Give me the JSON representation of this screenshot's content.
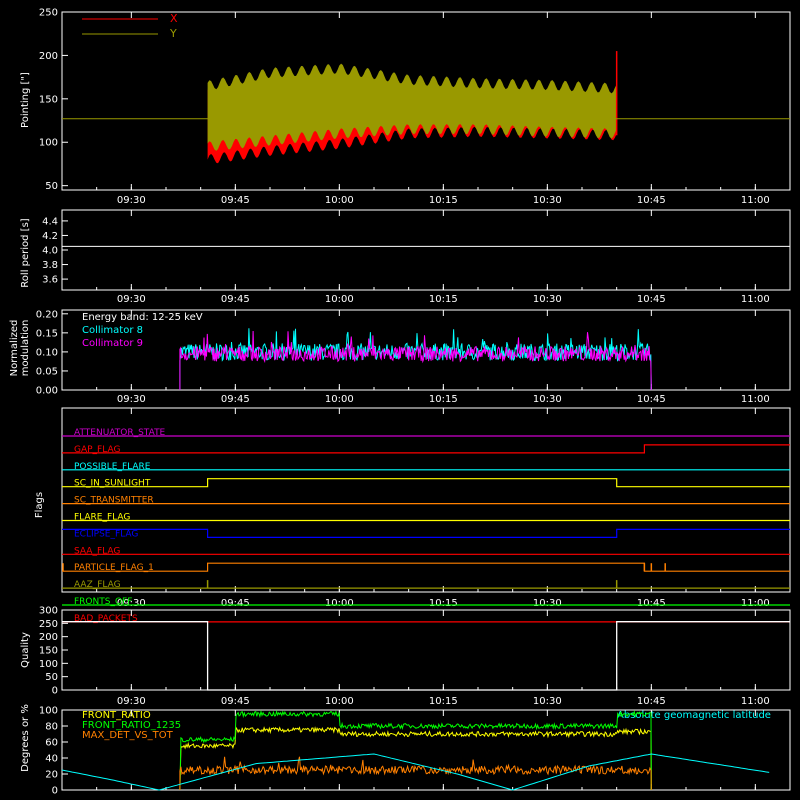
{
  "colors": {
    "background": "#000000",
    "axes": "#ffffff",
    "x_series": "#ff0000",
    "y_series": "#999900",
    "cyan": "#00ffff",
    "magenta": "#ff00ff",
    "white": "#ffffff",
    "green": "#00ff00",
    "yellow": "#ffff00",
    "orange": "#ff8000",
    "blue": "#0000ff",
    "purple": "#cc00cc",
    "red": "#ff0000"
  },
  "time_axis": {
    "range": [
      "09:20",
      "11:05"
    ],
    "ticks": [
      "09:30",
      "09:45",
      "10:00",
      "10:15",
      "10:30",
      "10:45",
      "11:00"
    ]
  },
  "chart_data": [
    {
      "id": "pointing",
      "type": "line",
      "ylabel": "Pointing [\"]",
      "ylim": [
        45,
        250
      ],
      "yticks": [
        50,
        100,
        150,
        200,
        250
      ],
      "legend": [
        "X",
        "Y"
      ],
      "legend_placement": "top-left",
      "series": [
        {
          "name": "X",
          "color_key": "x_series",
          "x": [
            "09:41",
            "09:50",
            "10:00",
            "10:10",
            "10:20",
            "10:30",
            "10:40"
          ],
          "upper": [
            160,
            168,
            172,
            165,
            162,
            160,
            158
          ],
          "lower": [
            80,
            90,
            98,
            110,
            112,
            110,
            108
          ],
          "end_spike": 205
        },
        {
          "name": "Y",
          "color_key": "y_series",
          "x": [
            "09:41",
            "09:50",
            "10:00",
            "10:10",
            "10:20",
            "10:30",
            "10:40"
          ],
          "upper": [
            165,
            180,
            185,
            172,
            168,
            166,
            162
          ],
          "lower": [
            95,
            102,
            110,
            115,
            115,
            112,
            110
          ]
        }
      ],
      "reference_line": 127
    },
    {
      "id": "roll",
      "type": "line",
      "ylabel": "Roll period [s]",
      "ylim": [
        3.45,
        4.55
      ],
      "yticks": [
        "3.6",
        "3.8",
        "4.0",
        "4.2",
        "4.4"
      ],
      "series": [
        {
          "name": "",
          "x": [
            "09:20",
            "11:05"
          ],
          "y": [
            4.05,
            4.05
          ]
        }
      ]
    },
    {
      "id": "modulation",
      "type": "line",
      "ylabel_lines": [
        "Normalized",
        "modulation"
      ],
      "ylim": [
        0,
        0.21
      ],
      "yticks": [
        "0.00",
        "0.05",
        "0.10",
        "0.15",
        "0.20"
      ],
      "annotation": "Energy band: 12-25 keV",
      "series": [
        {
          "name": "Collimator 8",
          "color_key": "cyan",
          "x_range": [
            "09:37",
            "10:45"
          ],
          "mean": 0.1,
          "spread": 0.045
        },
        {
          "name": "Collimator 9",
          "color_key": "magenta",
          "x_range": [
            "09:37",
            "10:45"
          ],
          "mean": 0.095,
          "spread": 0.04
        }
      ]
    },
    {
      "id": "flags",
      "type": "line",
      "ylabel": "Flags",
      "rows": [
        {
          "name": "ATTENUATOR_STATE",
          "color_key": "purple",
          "steps": [
            [
              "09:20",
              0
            ]
          ]
        },
        {
          "name": "GAP_FLAG",
          "color_key": "red",
          "steps": [
            [
              "09:20",
              0
            ],
            [
              "10:44",
              1
            ]
          ]
        },
        {
          "name": "POSSIBLE_FLARE",
          "color_key": "cyan",
          "steps": [
            [
              "09:20",
              0
            ]
          ]
        },
        {
          "name": "SC_IN_SUNLIGHT",
          "color_key": "yellow",
          "steps": [
            [
              "09:20",
              0
            ],
            [
              "09:41",
              1
            ],
            [
              "10:40",
              0
            ]
          ]
        },
        {
          "name": "SC_TRANSMITTER",
          "color_key": "orange",
          "steps": [
            [
              "09:20",
              0
            ]
          ]
        },
        {
          "name": "FLARE_FLAG",
          "color_key": "yellow",
          "steps": [
            [
              "09:20",
              0
            ]
          ]
        },
        {
          "name": "ECLIPSE_FLAG",
          "color_key": "blue",
          "steps": [
            [
              "09:20",
              1
            ],
            [
              "09:41",
              0
            ],
            [
              "10:40",
              1
            ]
          ]
        },
        {
          "name": "SAA_FLAG",
          "color_key": "red",
          "steps": [
            [
              "09:20",
              0
            ]
          ]
        },
        {
          "name": "PARTICLE_FLAG_1",
          "color_key": "orange",
          "steps": [
            [
              "09:20",
              0
            ],
            [
              "09:41",
              1
            ],
            [
              "10:44",
              0
            ]
          ],
          "spikes": [
            "09:20",
            "10:44",
            "10:45",
            "10:47"
          ]
        },
        {
          "name": "AAZ_FLAG",
          "color_key": "y_series",
          "steps": [
            [
              "09:20",
              0
            ]
          ],
          "spikes": [
            "09:41",
            "10:40"
          ]
        },
        {
          "name": "FRONTS_OFF",
          "color_key": "green",
          "steps": [
            [
              "09:20",
              0
            ]
          ]
        },
        {
          "name": "BAD_PACKETS",
          "color_key": "red",
          "steps": [
            [
              "09:20",
              0
            ]
          ]
        }
      ]
    },
    {
      "id": "quality",
      "type": "line",
      "ylabel": "Quality",
      "ylim": [
        0,
        300
      ],
      "yticks": [
        0,
        50,
        100,
        150,
        200,
        250,
        300
      ],
      "series": [
        {
          "name": "",
          "x": [
            "09:20",
            "09:41",
            "09:41",
            "10:40",
            "10:40",
            "11:05"
          ],
          "y": [
            256,
            256,
            0,
            0,
            256,
            256
          ]
        }
      ]
    },
    {
      "id": "geomag",
      "type": "line",
      "ylabel": "Degrees or %",
      "ylim": [
        0,
        100
      ],
      "yticks": [
        0,
        20,
        40,
        60,
        80,
        100
      ],
      "annotation": "Absolute geomagnetic latitude",
      "series": [
        {
          "name": "FRONT_RATIO",
          "color_key": "yellow",
          "x": [
            "09:37",
            "09:37",
            "09:45",
            "09:45",
            "10:00",
            "10:00",
            "10:40",
            "10:40",
            "10:45"
          ],
          "y": [
            0,
            55,
            55,
            75,
            75,
            70,
            70,
            73,
            73
          ]
        },
        {
          "name": "FRONT_RATIO_1235",
          "color_key": "green",
          "x": [
            "09:37",
            "09:37",
            "09:45",
            "09:45",
            "10:00",
            "10:00",
            "10:40",
            "10:40",
            "10:45"
          ],
          "y": [
            0,
            63,
            63,
            95,
            95,
            80,
            80,
            95,
            95
          ]
        },
        {
          "name": "MAX_DET_VS_TOT",
          "color_key": "orange",
          "x_range": [
            "09:37",
            "10:45"
          ],
          "mean": 25,
          "spread": 10
        },
        {
          "name": "Absolute geomagnetic latitude",
          "color_key": "cyan",
          "x": [
            "09:20",
            "09:27",
            "09:34",
            "09:48",
            "10:05",
            "10:17",
            "10:25",
            "10:36",
            "10:45",
            "11:02"
          ],
          "y": [
            25,
            13,
            0,
            33,
            45,
            20,
            0,
            30,
            45,
            22
          ]
        }
      ]
    }
  ],
  "labels": {
    "pointing": {
      "ylabel": "Pointing [\"]",
      "legend_x": "X",
      "legend_y": "Y"
    },
    "roll": {
      "ylabel": "Roll period [s]"
    },
    "modulation": {
      "ylabel_1": "Normalized",
      "ylabel_2": "modulation",
      "annotation": "Energy band: 12-25 keV",
      "legend_1": "Collimator 8",
      "legend_2": "Collimator 9"
    },
    "flags": {
      "ylabel": "Flags"
    },
    "quality": {
      "ylabel": "Quality"
    },
    "geomag": {
      "ylabel": "Degrees or %",
      "annotation": "Absolute geomagnetic latitude",
      "legend_1": "FRONT_RATIO",
      "legend_2": "FRONT_RATIO_1235",
      "legend_3": "MAX_DET_VS_TOT"
    }
  }
}
